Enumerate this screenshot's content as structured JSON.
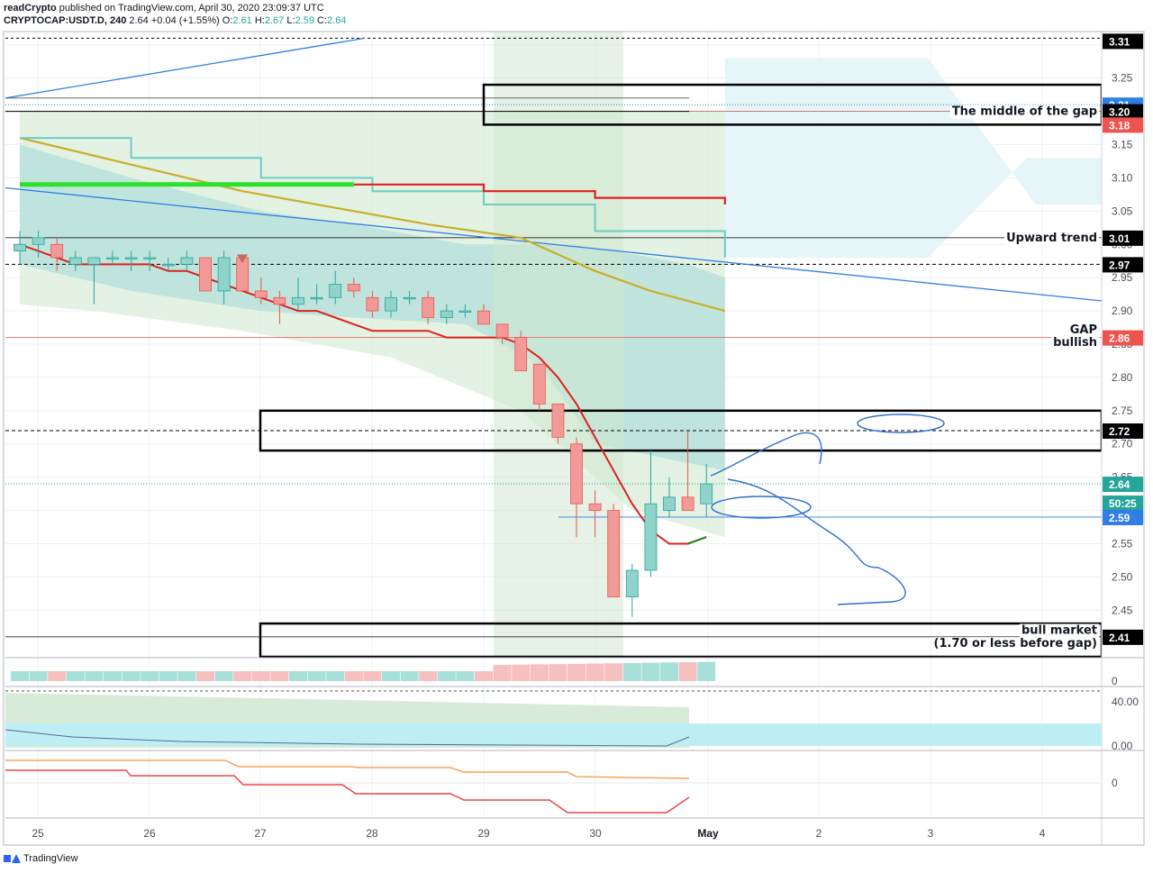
{
  "header": {
    "line1_user": "readCrypto",
    "line1_rest": "published on TradingView.com, April 30, 2020 23:09:37 UTC",
    "symbol": "CRYPTOCAP:USDT.D, 240",
    "last": "2.64",
    "change": "+0.04 (+1.55%)",
    "o_label": "O:",
    "o": "2.61",
    "h_label": "H:",
    "h": "2.67",
    "l_label": "L:",
    "l": "2.59",
    "c_label": "C:",
    "c": "2.64"
  },
  "footer": {
    "brand": "TradingView"
  },
  "colors": {
    "up": "#26a69a",
    "down": "#ef5350",
    "kumo_green": "#c8e6c9",
    "kumo_teal": "#b2dfdb",
    "highlight_band": "#d9ecd9",
    "trendline": "#2f7ee6"
  },
  "chart_data": {
    "type": "candlestick",
    "symbol": "CRYPTOCAP:USDT.D",
    "interval": "240",
    "ylim": [
      2.38,
      3.32
    ],
    "y_ticks": [
      2.45,
      2.5,
      2.55,
      2.6,
      2.65,
      2.7,
      2.75,
      2.8,
      2.85,
      2.9,
      2.95,
      3.0,
      3.05,
      3.1,
      3.15,
      3.2,
      3.25,
      3.3
    ],
    "x_ticks": [
      "25",
      "26",
      "27",
      "28",
      "29",
      "30",
      "May",
      "2",
      "3",
      "4"
    ],
    "candles": [
      {
        "o": 2.99,
        "h": 3.02,
        "l": 2.97,
        "c": 3.0
      },
      {
        "o": 3.0,
        "h": 3.02,
        "l": 2.98,
        "c": 3.01
      },
      {
        "o": 3.0,
        "h": 3.01,
        "l": 2.96,
        "c": 2.98
      },
      {
        "o": 2.97,
        "h": 2.99,
        "l": 2.96,
        "c": 2.98
      },
      {
        "o": 2.97,
        "h": 2.98,
        "l": 2.91,
        "c": 2.98
      },
      {
        "o": 2.98,
        "h": 2.99,
        "l": 2.97,
        "c": 2.98
      },
      {
        "o": 2.98,
        "h": 2.99,
        "l": 2.96,
        "c": 2.98
      },
      {
        "o": 2.98,
        "h": 2.99,
        "l": 2.96,
        "c": 2.98
      },
      {
        "o": 2.97,
        "h": 2.98,
        "l": 2.96,
        "c": 2.97
      },
      {
        "o": 2.97,
        "h": 2.99,
        "l": 2.96,
        "c": 2.98
      },
      {
        "o": 2.98,
        "h": 2.98,
        "l": 2.93,
        "c": 2.93
      },
      {
        "o": 2.93,
        "h": 2.99,
        "l": 2.91,
        "c": 2.98
      },
      {
        "o": 2.98,
        "h": 2.98,
        "l": 2.93,
        "c": 2.93
      },
      {
        "o": 2.93,
        "h": 2.95,
        "l": 2.91,
        "c": 2.92
      },
      {
        "o": 2.92,
        "h": 2.93,
        "l": 2.88,
        "c": 2.91
      },
      {
        "o": 2.91,
        "h": 2.95,
        "l": 2.9,
        "c": 2.92
      },
      {
        "o": 2.92,
        "h": 2.94,
        "l": 2.91,
        "c": 2.92
      },
      {
        "o": 2.92,
        "h": 2.96,
        "l": 2.91,
        "c": 2.94
      },
      {
        "o": 2.94,
        "h": 2.95,
        "l": 2.92,
        "c": 2.93
      },
      {
        "o": 2.92,
        "h": 2.93,
        "l": 2.89,
        "c": 2.9
      },
      {
        "o": 2.9,
        "h": 2.93,
        "l": 2.89,
        "c": 2.92
      },
      {
        "o": 2.92,
        "h": 2.93,
        "l": 2.91,
        "c": 2.92
      },
      {
        "o": 2.92,
        "h": 2.93,
        "l": 2.88,
        "c": 2.89
      },
      {
        "o": 2.89,
        "h": 2.91,
        "l": 2.88,
        "c": 2.9
      },
      {
        "o": 2.9,
        "h": 2.91,
        "l": 2.89,
        "c": 2.9
      },
      {
        "o": 2.9,
        "h": 2.91,
        "l": 2.88,
        "c": 2.88
      },
      {
        "o": 2.88,
        "h": 2.88,
        "l": 2.85,
        "c": 2.86
      },
      {
        "o": 2.86,
        "h": 2.87,
        "l": 2.81,
        "c": 2.81
      },
      {
        "o": 2.82,
        "h": 2.82,
        "l": 2.75,
        "c": 2.76
      },
      {
        "o": 2.76,
        "h": 2.76,
        "l": 2.7,
        "c": 2.71
      },
      {
        "o": 2.7,
        "h": 2.71,
        "l": 2.56,
        "c": 2.61
      },
      {
        "o": 2.61,
        "h": 2.63,
        "l": 2.56,
        "c": 2.6
      },
      {
        "o": 2.6,
        "h": 2.61,
        "l": 2.47,
        "c": 2.47
      },
      {
        "o": 2.47,
        "h": 2.52,
        "l": 2.44,
        "c": 2.51
      },
      {
        "o": 2.51,
        "h": 2.69,
        "l": 2.5,
        "c": 2.61
      },
      {
        "o": 2.6,
        "h": 2.65,
        "l": 2.59,
        "c": 2.62
      },
      {
        "o": 2.62,
        "h": 2.72,
        "l": 2.6,
        "c": 2.6
      },
      {
        "o": 2.61,
        "h": 2.67,
        "l": 2.59,
        "c": 2.64
      }
    ],
    "ema_red": [
      3.0,
      2.99,
      2.98,
      2.97,
      2.97,
      2.97,
      2.97,
      2.97,
      2.96,
      2.96,
      2.95,
      2.94,
      2.93,
      2.92,
      2.91,
      2.9,
      2.9,
      2.89,
      2.88,
      2.87,
      2.87,
      2.87,
      2.87,
      2.86,
      2.86,
      2.86,
      2.86,
      2.85,
      2.83,
      2.8,
      2.76,
      2.71,
      2.66,
      2.61,
      2.57,
      2.55,
      2.55,
      2.56
    ],
    "ma_gold_points": [
      [
        0,
        3.16
      ],
      [
        12,
        3.08
      ],
      [
        22,
        3.03
      ],
      [
        27,
        3.01
      ],
      [
        31,
        2.96
      ],
      [
        34,
        2.93
      ],
      [
        38,
        2.9
      ]
    ],
    "kijun_points": [
      [
        0,
        3.16
      ],
      [
        6,
        3.13
      ],
      [
        13,
        3.1
      ],
      [
        18,
        3.1
      ],
      [
        19,
        3.08
      ],
      [
        24,
        3.08
      ],
      [
        25,
        3.06
      ],
      [
        30,
        3.06
      ],
      [
        31,
        3.02
      ],
      [
        37,
        3.02
      ],
      [
        38,
        2.98
      ]
    ],
    "tenkan_points": [
      [
        0,
        3.09
      ],
      [
        18,
        3.09
      ],
      [
        25,
        3.08
      ],
      [
        31,
        3.07
      ],
      [
        37,
        3.07
      ],
      [
        38,
        3.06
      ]
    ],
    "horizontal_levels": [
      3.31,
      3.21,
      3.2,
      3.18,
      3.01,
      2.97,
      2.86,
      2.72,
      2.64,
      2.59,
      2.41
    ],
    "price_labels": [
      {
        "value": "3.31"
      },
      {
        "value": "3.21"
      },
      {
        "value": "3.20"
      },
      {
        "value": "3.18"
      },
      {
        "value": "3.01"
      },
      {
        "value": "2.97"
      },
      {
        "value": "2.86"
      },
      {
        "value": "2.72"
      },
      {
        "value": "2.64"
      },
      {
        "value": "50:25"
      },
      {
        "value": "2.59"
      },
      {
        "value": "2.41"
      }
    ],
    "annotations": [
      {
        "text": "The middle of the gap",
        "y": 3.2
      },
      {
        "text": "Upward trend",
        "y": 3.01
      },
      {
        "text": "GAP",
        "y": 2.872
      },
      {
        "text": "bullish",
        "y": 2.853
      },
      {
        "text": "bull market",
        "y": 2.42
      },
      {
        "text": "(1.70 or less before gap)",
        "y": 2.4
      }
    ],
    "zones": [
      {
        "y_top": 3.24,
        "y_bottom": 3.18
      },
      {
        "y_top": 2.75,
        "y_bottom": 2.69
      },
      {
        "y_top": 2.43,
        "y_bottom": 2.38
      }
    ],
    "volume_pane": {
      "tick_labels": [
        "0"
      ]
    },
    "oscillator_pane": {
      "tick_labels": [
        "40.00",
        "0.00"
      ]
    },
    "macd_pane": {
      "tick_labels": [
        "0"
      ]
    }
  }
}
